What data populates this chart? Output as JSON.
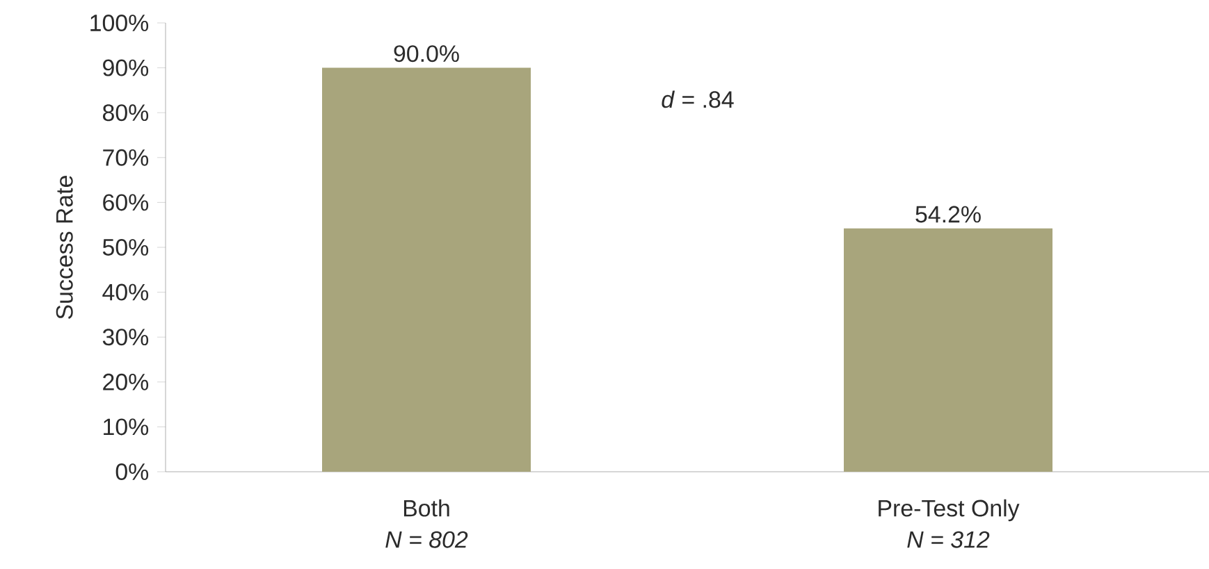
{
  "chart_data": {
    "type": "bar",
    "ylabel": "Success Rate",
    "categories": [
      "Both",
      "Pre-Test Only"
    ],
    "values": [
      90.0,
      54.2
    ],
    "value_labels": [
      "90.0%",
      "54.2%"
    ],
    "color": "#a8a57c",
    "ylim": [
      0,
      100
    ],
    "yticks": [
      {
        "value": 0,
        "label": "0%"
      },
      {
        "value": 10,
        "label": "10%"
      },
      {
        "value": 20,
        "label": "20%"
      },
      {
        "value": 30,
        "label": "30%"
      },
      {
        "value": 40,
        "label": "40%"
      },
      {
        "value": 50,
        "label": "50%"
      },
      {
        "value": 60,
        "label": "60%"
      },
      {
        "value": 70,
        "label": "70%"
      },
      {
        "value": 80,
        "label": "80%"
      },
      {
        "value": 90,
        "label": "90%"
      },
      {
        "value": 100,
        "label": "100%"
      }
    ],
    "annotations": [
      "*d* = .84",
      "*N = 802*",
      "*N = 312*"
    ]
  }
}
